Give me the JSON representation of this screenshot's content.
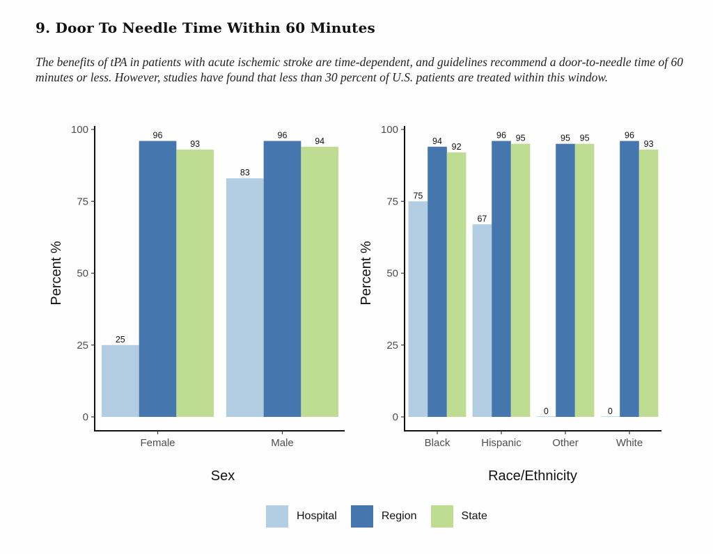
{
  "page": {
    "title": "9. Door To Needle Time Within 60 Minutes",
    "description": "The benefits of tPA in patients with acute ischemic stroke are time-dependent, and guidelines recommend a door-to-needle time of 60 minutes or less. However, studies have found that less than 30 percent of U.S. patients are treated within this window."
  },
  "legend": {
    "items": [
      {
        "label": "Hospital",
        "color": "#b3cde3"
      },
      {
        "label": "Region",
        "color": "#4676ae"
      },
      {
        "label": "State",
        "color": "#bedd93"
      }
    ]
  },
  "chart_data": [
    {
      "type": "bar",
      "title": "",
      "xlabel": "Sex",
      "ylabel": "Percent %",
      "ylim": [
        0,
        100
      ],
      "yticks": [
        0,
        25,
        50,
        75,
        100
      ],
      "categories": [
        "Female",
        "Male"
      ],
      "series": [
        {
          "name": "Hospital",
          "color": "#b3cde3",
          "values": [
            25,
            83
          ]
        },
        {
          "name": "Region",
          "color": "#4676ae",
          "values": [
            96,
            96
          ]
        },
        {
          "name": "State",
          "color": "#bedd93",
          "values": [
            93,
            94
          ]
        }
      ],
      "grid": false,
      "legend": "bottom"
    },
    {
      "type": "bar",
      "title": "",
      "xlabel": "Race/Ethnicity",
      "ylabel": "Percent %",
      "ylim": [
        0,
        100
      ],
      "yticks": [
        0,
        25,
        50,
        75,
        100
      ],
      "categories": [
        "Black",
        "Hispanic",
        "Other",
        "White"
      ],
      "series": [
        {
          "name": "Hospital",
          "color": "#b3cde3",
          "values": [
            75,
            67,
            0,
            0
          ]
        },
        {
          "name": "Region",
          "color": "#4676ae",
          "values": [
            94,
            96,
            95,
            96
          ]
        },
        {
          "name": "State",
          "color": "#bedd93",
          "values": [
            92,
            95,
            95,
            93
          ]
        }
      ],
      "grid": false,
      "legend": "bottom"
    }
  ]
}
